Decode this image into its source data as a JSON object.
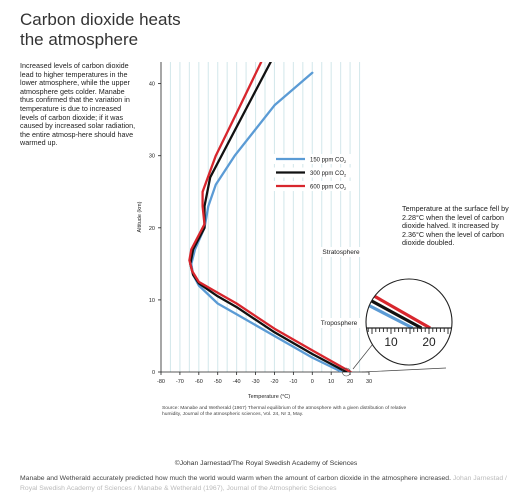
{
  "title_line1": "Carbon dioxide heats",
  "title_line2": "the atmosphere",
  "sidebar_text": "Increased levels of carbon dioxide lead to higher temperatures in the lower atmosphere, while the upper atmosphere gets colder. Manabe thus confirmed that the variation in temperature is due to increased levels of carbon dioxide; if it was caused by increased solar radiation, the entire atmosp-here should have warmed up.",
  "annotation_text": "Temperature at the surface fell by 2.28°C when the level of carbon dioxide halved. It increased by 2.36°C when the level of carbon dioxide doubled.",
  "source_text": "Source: Manabe and Wetherald (1967) Thermal equilibrium of the atmosphere with a given distribution of relative humidity, Journal of the atmospheric sciences, Vol. 24, Nr 3, May.",
  "credit_text": "©Johan Jarnestad/The Royal Swedish Academy of Sciences",
  "caption_text": "Manabe and Wetherald accurately predicted how much the world would warm when the amount of carbon dioxide in the atmosphere increased.",
  "caption_credit": "Johan Jarnestad / Royal Swedish Academy of Sciences / Manabe & Wetherald (1967), Journal of the Atmospheric Sciences",
  "chart_data": {
    "type": "line",
    "xlabel": "Temperature (°C)",
    "ylabel": "Altitude (km)",
    "xlim": [
      -80,
      30
    ],
    "ylim": [
      0,
      43
    ],
    "xticks": [
      -80,
      -70,
      -60,
      -50,
      -40,
      -30,
      -20,
      -10,
      0,
      10,
      20,
      30
    ],
    "yticks": [
      0,
      10,
      20,
      30,
      40
    ],
    "grid": "vertical",
    "legend_position": "right",
    "regions": [
      "Stratosphere",
      "Troposphere"
    ],
    "inset_ticks": [
      10,
      20
    ],
    "colors": {
      "150": "#5b9bd5",
      "300": "#111111",
      "600": "#d8262d",
      "grid": "#d6e9ec"
    },
    "series": [
      {
        "name": "150 ppm CO2",
        "legend_label": "150 ppm CO",
        "key": "150",
        "points": [
          [
            15.7,
            0
          ],
          [
            0,
            2
          ],
          [
            -20,
            5
          ],
          [
            -40,
            8
          ],
          [
            -50,
            9.5
          ],
          [
            -60,
            12
          ],
          [
            -63,
            13.5
          ],
          [
            -64,
            15
          ],
          [
            -62,
            17
          ],
          [
            -57,
            20
          ],
          [
            -55,
            23
          ],
          [
            -51,
            26
          ],
          [
            -41,
            30
          ],
          [
            -20,
            37
          ],
          [
            0,
            41.5
          ]
        ]
      },
      {
        "name": "300 ppm CO2",
        "legend_label": "300 ppm CO",
        "key": "300",
        "points": [
          [
            18,
            0
          ],
          [
            0,
            2.5
          ],
          [
            -20,
            5.5
          ],
          [
            -40,
            9
          ],
          [
            -50,
            10.5
          ],
          [
            -60,
            12.3
          ],
          [
            -63,
            13.5
          ],
          [
            -64.5,
            15
          ],
          [
            -63,
            17
          ],
          [
            -57,
            20
          ],
          [
            -57,
            23
          ],
          [
            -54,
            27
          ],
          [
            -46,
            31
          ],
          [
            -32,
            38
          ],
          [
            -22,
            43
          ]
        ]
      },
      {
        "name": "600 ppm CO2",
        "legend_label": "600 ppm CO",
        "key": "600",
        "points": [
          [
            20.3,
            0
          ],
          [
            0,
            3
          ],
          [
            -20,
            6
          ],
          [
            -40,
            9.5
          ],
          [
            -50,
            11
          ],
          [
            -60,
            12.5
          ],
          [
            -63.5,
            14
          ],
          [
            -65,
            15.5
          ],
          [
            -64,
            17
          ],
          [
            -57,
            20.5
          ],
          [
            -58,
            23
          ],
          [
            -58,
            25
          ],
          [
            -51,
            30
          ],
          [
            -38,
            37
          ],
          [
            -27,
            43
          ]
        ]
      }
    ]
  }
}
